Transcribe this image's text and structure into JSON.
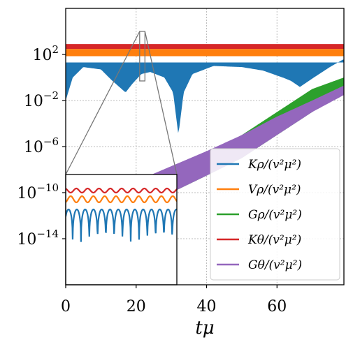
{
  "chart_data": {
    "type": "line",
    "xlabel": "tμ",
    "y_scale": "log",
    "xlim": [
      0,
      79
    ],
    "ylim": [
      1e-18,
      1000000.0
    ],
    "x_ticks": [
      "0",
      "20",
      "40",
      "60"
    ],
    "y_ticks": [
      {
        "value": 100.0,
        "base": "10",
        "exp": "2"
      },
      {
        "value": 0.01,
        "base": "10",
        "exp": "−2"
      },
      {
        "value": 1e-06,
        "base": "10",
        "exp": "−6"
      },
      {
        "value": 1e-10,
        "base": "10",
        "exp": "−10"
      },
      {
        "value": 1e-14,
        "base": "10",
        "exp": "−14"
      }
    ],
    "grid": true,
    "legend_position": "lower-right",
    "series": [
      {
        "name": "Kρ/(v²μ²)",
        "color": "#1f77b4",
        "style": "oscillating band",
        "lower_envelope": [
          [
            0,
            0.01
          ],
          [
            2,
            1
          ],
          [
            5,
            8
          ],
          [
            10,
            5
          ],
          [
            13,
            0.6
          ],
          [
            17,
            0.05
          ],
          [
            19,
            0.3
          ],
          [
            21.5,
            2
          ],
          [
            24,
            3
          ],
          [
            28,
            1
          ],
          [
            30.5,
            0.05
          ],
          [
            32,
            1e-05
          ],
          [
            33.5,
            0.05
          ],
          [
            36,
            2
          ],
          [
            42,
            10
          ],
          [
            50,
            8
          ],
          [
            56,
            4
          ],
          [
            62,
            0.9
          ],
          [
            64,
            0.5
          ],
          [
            66.5,
            0.15
          ],
          [
            70,
            0.8
          ],
          [
            75,
            8
          ],
          [
            79,
            40
          ]
        ],
        "upper": [
          [
            0,
            20
          ],
          [
            79,
            20
          ]
        ]
      },
      {
        "name": "Vρ/(v²μ²)",
        "color": "#ff7f0e",
        "style": "band",
        "lower": [
          [
            0,
            70
          ],
          [
            79,
            70
          ]
        ],
        "upper": [
          [
            0,
            300
          ],
          [
            79,
            300
          ]
        ]
      },
      {
        "name": "Gρ/(v²μ²)",
        "color": "#2ca02c",
        "style": "band",
        "lower": [
          [
            0,
            1e-11
          ],
          [
            10,
            3e-13
          ],
          [
            20,
            3e-12
          ],
          [
            30,
            1e-10
          ],
          [
            40,
            3e-09
          ],
          [
            50,
            1e-07
          ],
          [
            60,
            1e-05
          ],
          [
            70,
            0.001
          ],
          [
            79,
            0.1
          ]
        ],
        "upper": [
          [
            0,
            1e-09
          ],
          [
            10,
            3e-11
          ],
          [
            20,
            3e-10
          ],
          [
            30,
            1e-08
          ],
          [
            40,
            3e-07
          ],
          [
            50,
            1e-05
          ],
          [
            60,
            0.001
          ],
          [
            70,
            0.1
          ],
          [
            79,
            1
          ]
        ]
      },
      {
        "name": "Kθ/(v²μ²)",
        "color": "#d62728",
        "style": "band",
        "lower": [
          [
            0,
            300
          ],
          [
            79,
            300
          ]
        ],
        "upper": [
          [
            0,
            800
          ],
          [
            79,
            800
          ]
        ]
      },
      {
        "name": "Gθ/(v²μ²)",
        "color": "#9467bd",
        "style": "band",
        "lower": [
          [
            0,
            3e-13
          ],
          [
            10,
            8e-13
          ],
          [
            20,
            3e-12
          ],
          [
            30,
            1e-10
          ],
          [
            40,
            3e-09
          ],
          [
            50,
            1e-07
          ],
          [
            60,
            1e-05
          ],
          [
            70,
            0.001
          ],
          [
            79,
            0.03
          ]
        ],
        "upper": [
          [
            0,
            5e-11
          ],
          [
            10,
            3e-10
          ],
          [
            20,
            1e-09
          ],
          [
            30,
            2e-08
          ],
          [
            40,
            4e-07
          ],
          [
            50,
            1e-05
          ],
          [
            60,
            0.0004
          ],
          [
            70,
            0.01
          ],
          [
            79,
            0.2
          ]
        ]
      }
    ],
    "inset": {
      "zoom_x_range": [
        21,
        22.5
      ],
      "zoom_y_range": [
        0.5,
        10000
      ]
    }
  }
}
